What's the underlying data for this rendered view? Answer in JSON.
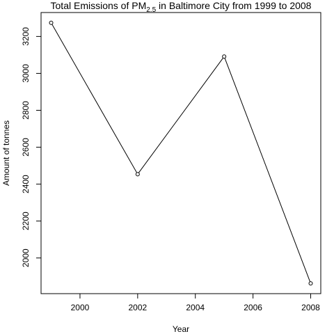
{
  "chart_data": {
    "type": "line",
    "title": "Total Emissions of PM",
    "title_subscript": "2.5",
    "title_suffix": " in Baltimore City from 1999 to 2008",
    "xlabel": "Year",
    "ylabel": "Amount of tonnes",
    "x": [
      1999,
      2002,
      2005,
      2008
    ],
    "series": [
      {
        "values": [
          3274.18,
          2453.92,
          3091.35,
          1862.28
        ]
      }
    ],
    "xlim": [
      1998.65,
      2008.35
    ],
    "ylim": [
      1806.8,
      3329.6
    ],
    "xticks": [
      2000,
      2002,
      2004,
      2006,
      2008
    ],
    "yticks": [
      2000,
      2200,
      2400,
      2600,
      2800,
      3000,
      3200
    ],
    "xtick_labels": [
      "2000",
      "2002",
      "2004",
      "2006",
      "2008"
    ],
    "ytick_labels": [
      "2000",
      "2200",
      "2400",
      "2600",
      "2800",
      "3000",
      "3200"
    ],
    "grid": false,
    "line_color": "#000000",
    "marker": "open-circle"
  }
}
